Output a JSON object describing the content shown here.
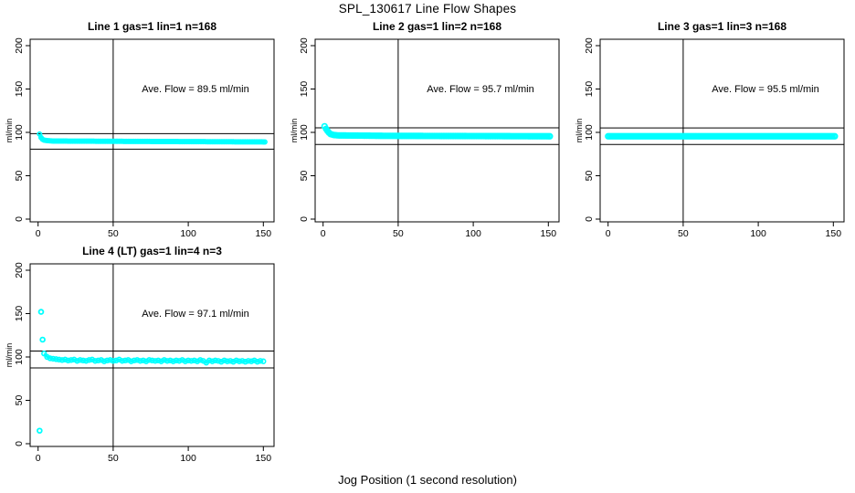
{
  "page_title": "SPL_130617  Line Flow Shapes",
  "x_axis_label": "Jog Position (1 second resolution)",
  "y_axis_label": "ml/min",
  "colors": {
    "points": "#00FFFF",
    "axis": "#000000",
    "text": "#000000",
    "background": "#FFFFFF"
  },
  "chart_data": [
    {
      "type": "scatter",
      "title": "Line 1 gas=1 lin=1 n=168",
      "annotation": "Ave. Flow =  89.5  ml/min",
      "ave_flow_ml_min": 89.5,
      "xlim": [
        0,
        155
      ],
      "ylim": [
        0,
        200
      ],
      "xticks": [
        0,
        50,
        100,
        150
      ],
      "yticks": [
        0,
        50,
        100,
        150,
        200
      ],
      "vline_x": 50,
      "hlines": [
        98.5,
        80.6
      ],
      "marker_radius": 2.2,
      "band_line_width": 3,
      "band_centerline": {
        "x": [
          1,
          2,
          3,
          4,
          6,
          10,
          80,
          151
        ],
        "y": [
          98,
          94,
          92,
          91,
          90.5,
          90,
          89.5,
          89
        ]
      },
      "outliers": {
        "x": [],
        "y": []
      }
    },
    {
      "type": "scatter",
      "title": "Line 2 gas=1 lin=2 n=168",
      "annotation": "Ave. Flow =  95.7  ml/min",
      "ave_flow_ml_min": 95.7,
      "xlim": [
        0,
        155
      ],
      "ylim": [
        0,
        200
      ],
      "xticks": [
        0,
        50,
        100,
        150
      ],
      "yticks": [
        0,
        50,
        100,
        150,
        200
      ],
      "vline_x": 50,
      "hlines": [
        105.3,
        86.1
      ],
      "marker_radius": 2.8,
      "band_line_width": 4,
      "band_centerline": {
        "x": [
          1,
          2,
          3,
          4,
          5,
          7,
          10,
          40,
          151
        ],
        "y": [
          107,
          104,
          101.5,
          99.5,
          98,
          97,
          96.5,
          96,
          95.5
        ]
      },
      "outliers": {
        "x": [],
        "y": []
      }
    },
    {
      "type": "scatter",
      "title": "Line 3 gas=1 lin=3 n=168",
      "annotation": "Ave. Flow =  95.5  ml/min",
      "ave_flow_ml_min": 95.5,
      "xlim": [
        0,
        155
      ],
      "ylim": [
        0,
        200
      ],
      "xticks": [
        0,
        50,
        100,
        150
      ],
      "yticks": [
        0,
        50,
        100,
        150,
        200
      ],
      "vline_x": 50,
      "hlines": [
        105.1,
        86.0
      ],
      "marker_radius": 2.8,
      "band_line_width": 4,
      "band_centerline": {
        "x": [
          0,
          151
        ],
        "y": [
          95.5,
          95.5
        ]
      },
      "outliers": {
        "x": [],
        "y": []
      }
    },
    {
      "type": "scatter",
      "title": "Line 4 (LT) gas=1 lin=4 n=3",
      "annotation": "Ave. Flow =  97.1  ml/min",
      "ave_flow_ml_min": 97.1,
      "xlim": [
        0,
        155
      ],
      "ylim": [
        0,
        200
      ],
      "xticks": [
        0,
        50,
        100,
        150
      ],
      "yticks": [
        0,
        50,
        100,
        150,
        200
      ],
      "vline_x": 50,
      "hlines": [
        106.8,
        87.4
      ],
      "marker_radius": 2.4,
      "band_line_width": 2.5,
      "points": {
        "x": [
          4,
          6,
          8,
          10,
          12,
          14,
          16,
          18,
          20,
          22,
          24,
          26,
          28,
          30,
          32,
          34,
          36,
          38,
          40,
          42,
          44,
          46,
          48,
          50,
          52,
          54,
          56,
          58,
          60,
          62,
          64,
          66,
          68,
          70,
          72,
          74,
          76,
          78,
          80,
          82,
          84,
          86,
          88,
          90,
          92,
          94,
          96,
          98,
          100,
          102,
          104,
          106,
          108,
          110,
          112,
          114,
          116,
          118,
          120,
          122,
          124,
          126,
          128,
          130,
          132,
          134,
          136,
          138,
          140,
          142,
          144,
          146,
          148,
          150
        ],
        "y": [
          104,
          100,
          98.5,
          98,
          97.5,
          97,
          96.5,
          97,
          96,
          96.5,
          97,
          95.5,
          96.5,
          96,
          95.5,
          96.5,
          97,
          95.5,
          96,
          96.5,
          95,
          96,
          96.5,
          95.5,
          96,
          97,
          95.5,
          96,
          96.5,
          95,
          96,
          96.5,
          95.5,
          96,
          95,
          96.5,
          96,
          95.5,
          96,
          95,
          96.5,
          95.5,
          96,
          95,
          96,
          95.5,
          96.5,
          95,
          96,
          95.5,
          96,
          95,
          96.5,
          95.5,
          93.5,
          96,
          95,
          96,
          95.5,
          94.5,
          96,
          95,
          95.5,
          94.5,
          96,
          95,
          95.5,
          94.5,
          95.5,
          95,
          96,
          94.5,
          95.5,
          95
        ]
      },
      "outliers": {
        "x": [
          2,
          3,
          1
        ],
        "y": [
          152,
          120,
          15
        ]
      }
    }
  ]
}
